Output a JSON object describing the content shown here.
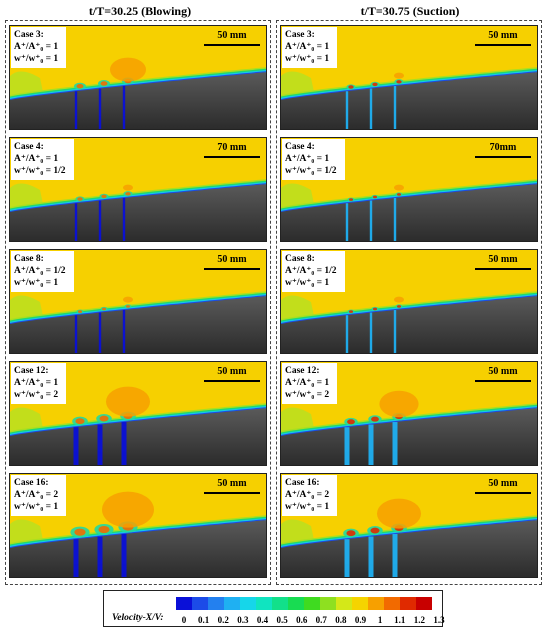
{
  "columns": [
    {
      "title": "t/T=30.25 (Blowing)"
    },
    {
      "title": "t/T=30.75 (Suction)"
    }
  ],
  "panels_left": [
    {
      "case": "Case 3:",
      "a": "A⁺/A⁺₀ = 1",
      "w": "w⁺/w⁺₀ = 1",
      "scale": "50 mm"
    },
    {
      "case": "Case 4:",
      "a": "A⁺/A⁺₀ = 1",
      "w": "w⁺/w⁺₀ = 1/2",
      "scale": "70 mm"
    },
    {
      "case": "Case 8:",
      "a": "A⁺/A⁺₀ = 1/2",
      "w": "w⁺/w⁺₀ = 1",
      "scale": "50 mm"
    },
    {
      "case": "Case 12:",
      "a": "A⁺/A⁺₀ = 1",
      "w": "w⁺/w⁺₀ = 2",
      "scale": "50 mm"
    },
    {
      "case": "Case 16:",
      "a": "A⁺/A⁺₀ = 2",
      "w": "w⁺/w⁺₀ = 1",
      "scale": "50 mm"
    }
  ],
  "panels_right": [
    {
      "case": "Case 3:",
      "a": "A⁺/A⁺₀ = 1",
      "w": "w⁺/w⁺₀ = 1",
      "scale": "50 mm"
    },
    {
      "case": "Case 4:",
      "a": "A⁺/A⁺₀ = 1",
      "w": "w⁺/w⁺₀ = 1/2",
      "scale": "70mm"
    },
    {
      "case": "Case 8:",
      "a": "A⁺/A⁺₀ = 1/2",
      "w": "w⁺/w⁺₀ = 1",
      "scale": "50 mm"
    },
    {
      "case": "Case 12:",
      "a": "A⁺/A⁺₀ = 1",
      "w": "w⁺/w⁺₀ = 2",
      "scale": "50 mm"
    },
    {
      "case": "Case 16:",
      "a": "A⁺/A⁺₀ = 2",
      "w": "w⁺/w⁺₀ = 1",
      "scale": "50 mm"
    }
  ],
  "legend": {
    "title": "Velocity-X/V:",
    "ticks": [
      "0",
      "0.1",
      "0.2",
      "0.3",
      "0.4",
      "0.5",
      "0.6",
      "0.7",
      "0.8",
      "0.9",
      "1",
      "1.1",
      "1.2",
      "1.3"
    ],
    "colors": [
      "#0a10d8",
      "#1c4be8",
      "#2380ef",
      "#1fb0f2",
      "#16d6ea",
      "#10e4c0",
      "#12e08a",
      "#18dc52",
      "#3fdb20",
      "#8ee020",
      "#d4e818",
      "#f5d400",
      "#f7a000",
      "#f26a00",
      "#e02a00",
      "#c80000"
    ]
  }
}
